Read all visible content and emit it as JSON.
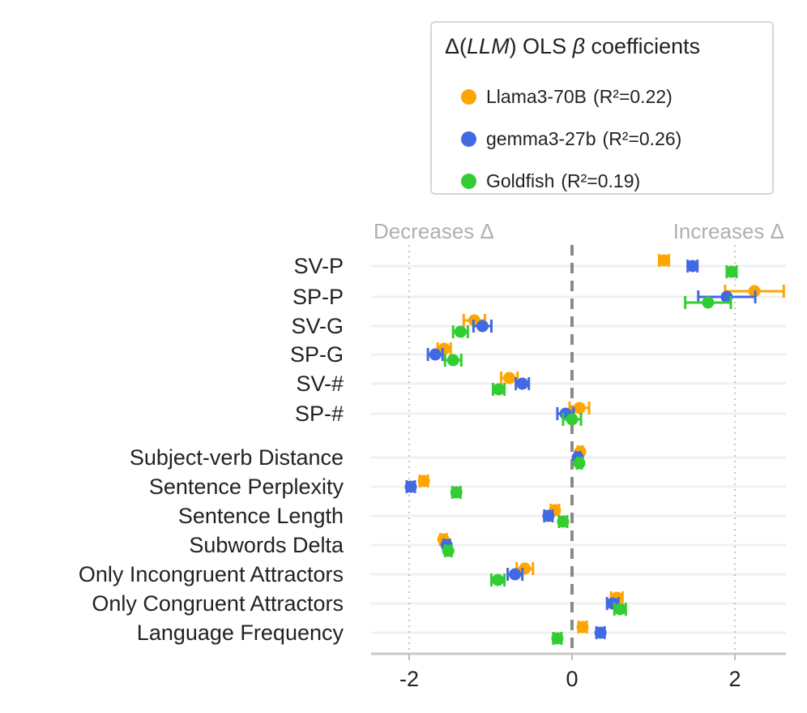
{
  "chart_data": {
    "type": "scatter",
    "title": "",
    "xlabel": "",
    "ylabel": "",
    "xlim": [
      -2.45,
      2.65
    ],
    "xticks": [
      -2,
      0,
      2
    ],
    "xtick_labels": [
      "-2",
      "0",
      "2"
    ],
    "annotations": {
      "left": "Decreases Δ",
      "right": "Increases Δ"
    },
    "legend": {
      "title_prefix": "Δ(",
      "title_italic": "LLM",
      "title_mid": ") OLS ",
      "title_beta": "β",
      "title_suffix": " coefficients",
      "placement": "top-right"
    },
    "categories": [
      "SV-P",
      "SP-P",
      "SV-G",
      "SP-G",
      "SV-#",
      "SP-#",
      "Subject-verb Distance",
      "Sentence Perplexity",
      "Sentence Length",
      "Subwords Delta",
      "Only Incongruent Attractors",
      "Only Congruent Attractors",
      "Language Frequency"
    ],
    "series": [
      {
        "name": "Llama3-70B",
        "r2_label": "(R²=0.22)",
        "color": "#FFA500",
        "values": [
          1.13,
          2.24,
          -1.2,
          -1.57,
          -0.77,
          0.09,
          0.1,
          -1.82,
          -0.21,
          -1.58,
          -0.58,
          0.55,
          0.13
        ],
        "errors": [
          0.06,
          0.36,
          0.13,
          0.08,
          0.1,
          0.12,
          0.03,
          0.05,
          0.05,
          0.04,
          0.1,
          0.07,
          0.05
        ]
      },
      {
        "name": "gemma3-27b",
        "r2_label": "(R²=0.26)",
        "color": "#4169E1",
        "values": [
          1.48,
          1.9,
          -1.1,
          -1.68,
          -0.61,
          -0.08,
          0.07,
          -1.98,
          -0.29,
          -1.54,
          -0.7,
          0.5,
          0.35
        ],
        "errors": [
          0.06,
          0.35,
          0.11,
          0.09,
          0.08,
          0.1,
          0.03,
          0.05,
          0.05,
          0.04,
          0.09,
          0.07,
          0.05
        ]
      },
      {
        "name": "Goldfish",
        "r2_label": "(R²=0.19)",
        "color": "#32CD32",
        "values": [
          1.96,
          1.67,
          -1.37,
          -1.46,
          -0.9,
          0.0,
          0.09,
          -1.42,
          -0.11,
          -1.52,
          -0.91,
          0.59,
          -0.18
        ],
        "errors": [
          0.06,
          0.28,
          0.09,
          0.1,
          0.07,
          0.11,
          0.03,
          0.05,
          0.05,
          0.04,
          0.08,
          0.07,
          0.05
        ]
      }
    ]
  }
}
